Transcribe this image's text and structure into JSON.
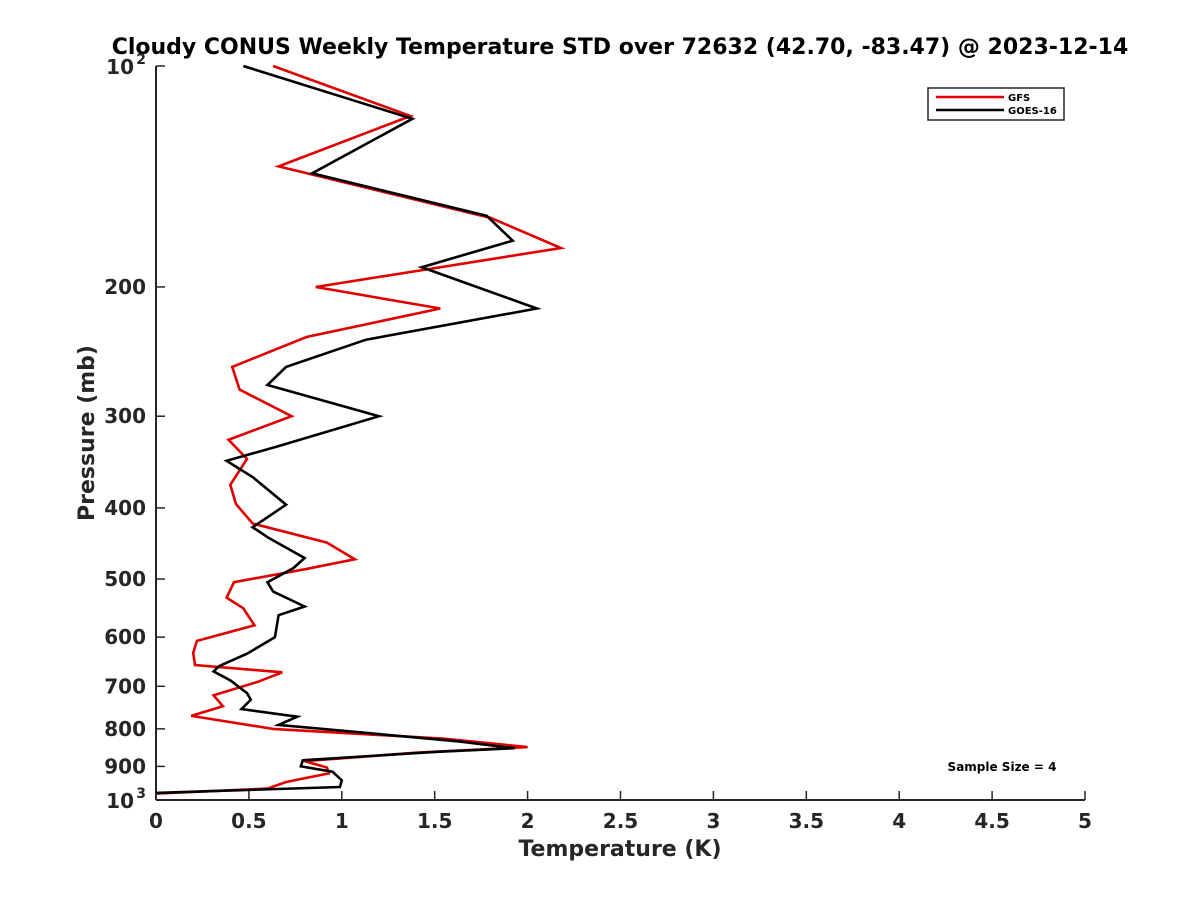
{
  "chart_data": {
    "type": "line",
    "title": "Cloudy CONUS Weekly Temperature STD over 72632 (42.70, -83.47) @ 2023-12-14",
    "xlabel": "Temperature (K)",
    "ylabel": "Pressure (mb)",
    "xlim": [
      0,
      5
    ],
    "ylim": [
      100,
      1000
    ],
    "y_scale": "log",
    "y_reversed": true,
    "x_ticks": [
      "0",
      "0.5",
      "1",
      "1.5",
      "2",
      "2.5",
      "3",
      "3.5",
      "4",
      "4.5",
      "5"
    ],
    "y_ticks": [
      {
        "value": 100,
        "base": "10",
        "exp": "2"
      },
      {
        "value": 200,
        "label": "200"
      },
      {
        "value": 300,
        "label": "300"
      },
      {
        "value": 400,
        "label": "400"
      },
      {
        "value": 500,
        "label": "500"
      },
      {
        "value": 600,
        "label": "600"
      },
      {
        "value": 700,
        "label": "700"
      },
      {
        "value": 800,
        "label": "800"
      },
      {
        "value": 900,
        "label": "900"
      },
      {
        "value": 1000,
        "base": "10",
        "exp": "3"
      }
    ],
    "legend_position": "top-right",
    "annotation": "Sample Size = 4",
    "series": [
      {
        "name": "GFS",
        "color": "#e00000",
        "points": [
          [
            0.63,
            100
          ],
          [
            1.37,
            117
          ],
          [
            0.66,
            137
          ],
          [
            1.8,
            161
          ],
          [
            2.18,
            177
          ],
          [
            0.86,
            200
          ],
          [
            1.53,
            214
          ],
          [
            0.81,
            234
          ],
          [
            0.41,
            257
          ],
          [
            0.45,
            276
          ],
          [
            0.73,
            300
          ],
          [
            0.39,
            323
          ],
          [
            0.49,
            343
          ],
          [
            0.4,
            372
          ],
          [
            0.43,
            395
          ],
          [
            0.52,
            420
          ],
          [
            0.92,
            446
          ],
          [
            1.07,
            470
          ],
          [
            0.8,
            485
          ],
          [
            0.42,
            505
          ],
          [
            0.38,
            530
          ],
          [
            0.47,
            548
          ],
          [
            0.53,
            578
          ],
          [
            0.22,
            607
          ],
          [
            0.2,
            630
          ],
          [
            0.21,
            655
          ],
          [
            0.68,
            670
          ],
          [
            0.55,
            690
          ],
          [
            0.31,
            720
          ],
          [
            0.36,
            745
          ],
          [
            0.19,
            768
          ],
          [
            0.63,
            800
          ],
          [
            1.55,
            825
          ],
          [
            2.0,
            847
          ],
          [
            1.4,
            862
          ],
          [
            0.8,
            885
          ],
          [
            0.92,
            903
          ],
          [
            0.93,
            920
          ],
          [
            0.7,
            945
          ],
          [
            0.6,
            965
          ],
          [
            0.0,
            980
          ]
        ]
      },
      {
        "name": "GOES-16",
        "color": "#000000",
        "points": [
          [
            0.47,
            100
          ],
          [
            1.38,
            118
          ],
          [
            0.84,
            140
          ],
          [
            1.78,
            160
          ],
          [
            1.92,
            173
          ],
          [
            1.43,
            188
          ],
          [
            2.05,
            214
          ],
          [
            1.13,
            236
          ],
          [
            0.7,
            257
          ],
          [
            0.6,
            272
          ],
          [
            1.2,
            300
          ],
          [
            0.65,
            330
          ],
          [
            0.38,
            345
          ],
          [
            0.52,
            363
          ],
          [
            0.7,
            396
          ],
          [
            0.52,
            425
          ],
          [
            0.61,
            440
          ],
          [
            0.8,
            468
          ],
          [
            0.74,
            483
          ],
          [
            0.6,
            505
          ],
          [
            0.63,
            520
          ],
          [
            0.8,
            545
          ],
          [
            0.66,
            560
          ],
          [
            0.64,
            600
          ],
          [
            0.49,
            632
          ],
          [
            0.34,
            657
          ],
          [
            0.31,
            668
          ],
          [
            0.4,
            687
          ],
          [
            0.49,
            715
          ],
          [
            0.51,
            730
          ],
          [
            0.46,
            752
          ],
          [
            0.76,
            770
          ],
          [
            0.66,
            790
          ],
          [
            1.63,
            832
          ],
          [
            1.93,
            850
          ],
          [
            1.5,
            860
          ],
          [
            0.79,
            883
          ],
          [
            0.78,
            900
          ],
          [
            0.95,
            915
          ],
          [
            1.0,
            940
          ],
          [
            0.99,
            960
          ],
          [
            0.0,
            978
          ]
        ]
      }
    ]
  }
}
